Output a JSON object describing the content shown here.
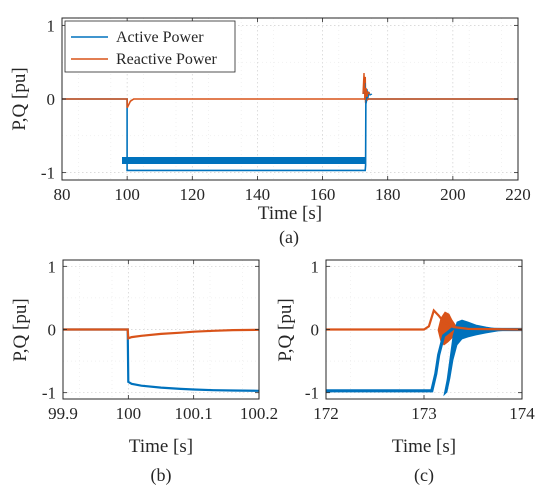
{
  "colors": {
    "active": "#0072BD",
    "reactive": "#D95319",
    "grid": "#cfcfcf",
    "axis": "#262626"
  },
  "chart_data": [
    {
      "type": "line",
      "panel": "(a)",
      "xlabel": "Time [s]",
      "ylabel": "P,Q [pu]",
      "xlim": [
        80,
        220
      ],
      "ylim": [
        -1.1,
        1.1
      ],
      "xticks": [
        "80",
        "100",
        "120",
        "140",
        "160",
        "180",
        "200",
        "220"
      ],
      "yticks": [
        "1",
        "0",
        "-1"
      ],
      "grid": true,
      "legend": "top-left",
      "series": [
        {
          "name": "Active Power",
          "x": [
            80,
            99.99,
            100,
            173.1,
            173.2,
            173.3,
            173.4,
            173.6,
            174,
            220
          ],
          "y": [
            0,
            0,
            -0.97,
            -0.97,
            -0.9,
            0.1,
            -0.05,
            0.02,
            0,
            0
          ]
        },
        {
          "name": "Reactive Power",
          "x": [
            80,
            100,
            100.01,
            101,
            102,
            173.0,
            173.1,
            173.2,
            173.3,
            173.5,
            174,
            220
          ],
          "y": [
            0,
            0,
            -0.12,
            -0.03,
            0,
            0,
            0.3,
            -0.05,
            0.08,
            -0.02,
            0,
            0
          ]
        }
      ]
    },
    {
      "type": "line",
      "panel": "(b)",
      "xlabel": "Time [s]",
      "ylabel": "P,Q [pu]",
      "xlim": [
        99.9,
        100.2
      ],
      "ylim": [
        -1.1,
        1.1
      ],
      "xticks": [
        "99.9",
        "100",
        "100.1",
        "100.2"
      ],
      "yticks": [
        "1",
        "0",
        "-1"
      ],
      "grid": true,
      "series": [
        {
          "name": "Active Power",
          "x": [
            99.9,
            99.999,
            100,
            100.005,
            100.02,
            100.05,
            100.08,
            100.1,
            100.13,
            100.16,
            100.2
          ],
          "y": [
            0,
            0,
            -0.83,
            -0.86,
            -0.89,
            -0.92,
            -0.94,
            -0.95,
            -0.96,
            -0.965,
            -0.97
          ]
        },
        {
          "name": "Reactive Power",
          "x": [
            99.9,
            99.999,
            100,
            100.005,
            100.02,
            100.05,
            100.08,
            100.1,
            100.13,
            100.16,
            100.2
          ],
          "y": [
            0,
            0,
            -0.14,
            -0.12,
            -0.1,
            -0.07,
            -0.05,
            -0.035,
            -0.02,
            -0.01,
            -0.005
          ]
        }
      ]
    },
    {
      "type": "line",
      "panel": "(c)",
      "xlabel": "Time [s]",
      "ylabel": "P,Q [pu]",
      "xlim": [
        172,
        174
      ],
      "ylim": [
        -1.1,
        1.1
      ],
      "xticks": [
        "172",
        "173",
        "174"
      ],
      "yticks": [
        "1",
        "0",
        "-1"
      ],
      "grid": true,
      "series": [
        {
          "name": "Active Power",
          "x": [
            172,
            173.0,
            173.08,
            173.12,
            173.15,
            173.2,
            173.3,
            173.45,
            173.6,
            173.8,
            174
          ],
          "y": [
            -0.97,
            -0.97,
            -0.97,
            -0.7,
            -0.4,
            -0.1,
            0.02,
            -0.01,
            0.005,
            0,
            0
          ]
        },
        {
          "name": "Reactive Power",
          "x": [
            172,
            173.0,
            173.05,
            173.1,
            173.15,
            173.2,
            173.3,
            173.45,
            174
          ],
          "y": [
            0,
            0,
            0.05,
            0.3,
            0.22,
            0.12,
            0.04,
            0.01,
            0
          ]
        }
      ]
    }
  ]
}
